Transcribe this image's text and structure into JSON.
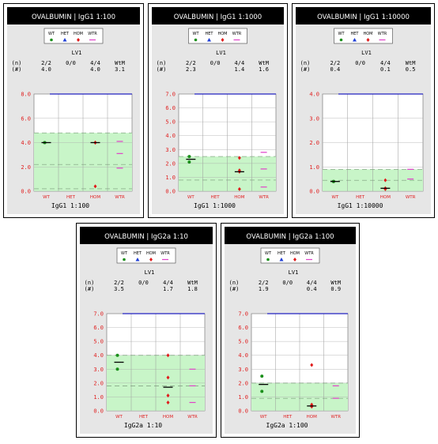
{
  "legend_labels": [
    "WT",
    "HET",
    "HOM",
    "WTR"
  ],
  "stats_header": {
    "line1": [
      "(n)",
      "2/2",
      "0/0",
      "4/4",
      "WtM"
    ],
    "line2": [
      "(#)"
    ]
  },
  "colors": {
    "WT": "#1a8f1a",
    "HET": "#1f3fd6",
    "HOM": "#e01b1b",
    "WTR": "#e040c8",
    "band": "#c8f5c8",
    "topline": "#2020c0",
    "axis_text": "#e02020"
  },
  "chart_data": [
    {
      "type": "scatter",
      "title": "OVALBUMIN | IgG1 1:100",
      "group": "LV1",
      "n_values": [
        "2/2",
        "0/0",
        "4/4"
      ],
      "summary_values": [
        "4.0",
        "",
        "4.0",
        "3.1"
      ],
      "categories": [
        "WT",
        "HET",
        "HOM",
        "WTR"
      ],
      "xlabel": "IgG1 1:100",
      "ylim": [
        0,
        8
      ],
      "yticks": [
        "0.0",
        "2.0",
        "4.0",
        "6.0",
        "8.0"
      ],
      "topline": 8.0,
      "band": [
        0,
        4.8
      ],
      "band_dashes": [
        4.8,
        2.2,
        0.2
      ],
      "series": [
        {
          "category": "WT",
          "points": [
            4.0,
            4.0
          ],
          "mean": 4.0
        },
        {
          "category": "HET",
          "points": [],
          "mean": null
        },
        {
          "category": "HOM",
          "points": [
            4.0,
            4.0,
            4.0,
            0.4
          ],
          "mean": 4.0
        },
        {
          "category": "WTR",
          "points": [],
          "marks": [
            4.1,
            3.1,
            1.9
          ]
        }
      ]
    },
    {
      "type": "scatter",
      "title": "OVALBUMIN | IgG1 1:1000",
      "group": "LV1",
      "n_values": [
        "2/2",
        "0/0",
        "4/4"
      ],
      "summary_values": [
        "2.3",
        "",
        "1.4",
        "1.6"
      ],
      "categories": [
        "WT",
        "HET",
        "HOM",
        "WTR"
      ],
      "xlabel": "IgG1 1:1000",
      "ylim": [
        0,
        7
      ],
      "yticks": [
        "0.0",
        "1.0",
        "2.0",
        "3.0",
        "4.0",
        "5.0",
        "6.0",
        "7.0"
      ],
      "topline": 7.0,
      "band": [
        0,
        2.5
      ],
      "band_dashes": [
        2.5,
        0.8
      ],
      "series": [
        {
          "category": "WT",
          "points": [
            2.5,
            2.1
          ],
          "mean": 2.3
        },
        {
          "category": "HET",
          "points": [],
          "mean": null
        },
        {
          "category": "HOM",
          "points": [
            2.4,
            1.5,
            1.4,
            0.15
          ],
          "mean": 1.4
        },
        {
          "category": "WTR",
          "points": [],
          "marks": [
            2.8,
            1.6,
            0.3
          ]
        }
      ]
    },
    {
      "type": "scatter",
      "title": "OVALBUMIN | IgG1 1:10000",
      "group": "LV1",
      "n_values": [
        "2/2",
        "0/0",
        "4/4"
      ],
      "summary_values": [
        "0.4",
        "",
        "0.1",
        "0.5"
      ],
      "categories": [
        "WT",
        "HET",
        "HOM",
        "WTR"
      ],
      "xlabel": "IgG1 1:10000",
      "ylim": [
        0,
        4
      ],
      "yticks": [
        "0.0",
        "1.0",
        "2.0",
        "3.0",
        "4.0"
      ],
      "topline": 4.0,
      "band": [
        0,
        0.9
      ],
      "band_dashes": [
        0.9,
        0.45
      ],
      "series": [
        {
          "category": "WT",
          "points": [
            0.4,
            0.4
          ],
          "mean": 0.4
        },
        {
          "category": "HET",
          "points": [],
          "mean": null
        },
        {
          "category": "HOM",
          "points": [
            0.45,
            0.12,
            0.1,
            0.08
          ],
          "mean": 0.12
        },
        {
          "category": "WTR",
          "points": [],
          "marks": [
            0.9,
            0.5
          ]
        }
      ]
    },
    {
      "type": "scatter",
      "title": "OVALBUMIN | IgG2a 1:10",
      "group": "LV1",
      "n_values": [
        "2/2",
        "0/0",
        "4/4"
      ],
      "summary_values": [
        "3.5",
        "",
        "1.7",
        "1.8"
      ],
      "categories": [
        "WT",
        "HET",
        "HOM",
        "WTR"
      ],
      "xlabel": "IgG2a 1:10",
      "ylim": [
        0,
        7
      ],
      "yticks": [
        "0.0",
        "1.0",
        "2.0",
        "3.0",
        "4.0",
        "5.0",
        "6.0",
        "7.0"
      ],
      "topline": 7.0,
      "band": [
        0,
        4.0
      ],
      "band_dashes": [
        4.0,
        1.8
      ],
      "series": [
        {
          "category": "WT",
          "points": [
            4.0,
            3.0
          ],
          "mean": 3.5
        },
        {
          "category": "HET",
          "points": [],
          "mean": null
        },
        {
          "category": "HOM",
          "points": [
            4.0,
            2.4,
            1.1,
            0.6
          ],
          "mean": 1.7
        },
        {
          "category": "WTR",
          "points": [],
          "marks": [
            3.0,
            1.8,
            0.6
          ]
        }
      ]
    },
    {
      "type": "scatter",
      "title": "OVALBUMIN | IgG2a 1:100",
      "group": "LV1",
      "n_values": [
        "2/2",
        "0/0",
        "4/4"
      ],
      "summary_values": [
        "1.9",
        "",
        "0.4",
        "0.9"
      ],
      "categories": [
        "WT",
        "HET",
        "HOM",
        "WTR"
      ],
      "xlabel": "IgG2a 1:100",
      "ylim": [
        0,
        7
      ],
      "yticks": [
        "0.0",
        "1.0",
        "2.0",
        "3.0",
        "4.0",
        "5.0",
        "6.0",
        "7.0"
      ],
      "topline": 7.0,
      "band": [
        0,
        2.0
      ],
      "band_dashes": [
        2.0,
        0.9
      ],
      "series": [
        {
          "category": "WT",
          "points": [
            2.5,
            1.4
          ],
          "mean": 1.9
        },
        {
          "category": "HET",
          "points": [],
          "mean": null
        },
        {
          "category": "HOM",
          "points": [
            3.3,
            0.45,
            0.35,
            0.3
          ],
          "mean": 0.35
        },
        {
          "category": "WTR",
          "points": [],
          "marks": [
            1.8,
            0.9
          ]
        }
      ]
    }
  ]
}
